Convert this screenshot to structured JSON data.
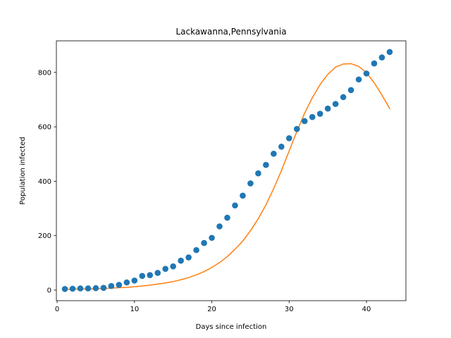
{
  "chart_data": {
    "type": "scatter",
    "title": "Lackawanna,Pennsylvania",
    "xlabel": "Days since infection",
    "ylabel": "Population infected",
    "xlim": [
      -0.1,
      45.1
    ],
    "ylim": [
      -39,
      916
    ],
    "xticks": [
      0,
      10,
      20,
      30,
      40
    ],
    "yticks": [
      0,
      200,
      400,
      600,
      800
    ],
    "grid": false,
    "series": [
      {
        "kind": "scatter",
        "color": "#1f77b4",
        "x": [
          1,
          2,
          3,
          4,
          5,
          6,
          7,
          8,
          9,
          10,
          11,
          12,
          13,
          14,
          15,
          16,
          17,
          18,
          19,
          20,
          21,
          22,
          23,
          24,
          25,
          26,
          27,
          28,
          29,
          30,
          31,
          32,
          33,
          34,
          35,
          36,
          37,
          38,
          39,
          40,
          41,
          42,
          43
        ],
        "y": [
          4,
          5,
          6,
          6,
          7,
          8,
          15,
          19,
          28,
          35,
          52,
          55,
          63,
          78,
          87,
          108,
          120,
          147,
          173,
          192,
          234,
          266,
          311,
          347,
          392,
          429,
          460,
          501,
          527,
          558,
          592,
          621,
          636,
          648,
          667,
          684,
          709,
          735,
          774,
          796,
          833,
          855,
          875
        ]
      },
      {
        "kind": "line",
        "color": "#ff7f0e",
        "x": [
          1,
          2,
          3,
          4,
          5,
          6,
          7,
          8,
          9,
          10,
          11,
          12,
          13,
          14,
          15,
          16,
          17,
          18,
          19,
          20,
          21,
          22,
          23,
          24,
          25,
          26,
          27,
          28,
          29,
          30,
          31,
          32,
          33,
          34,
          35,
          36,
          37,
          38,
          39,
          40,
          41,
          42,
          43
        ],
        "y": [
          2,
          3,
          4,
          4,
          5,
          6,
          7,
          9,
          10,
          12,
          15,
          18,
          22,
          26,
          31,
          38,
          46,
          56,
          68,
          83,
          101,
          123,
          150,
          180,
          218,
          262,
          313,
          373,
          439,
          511,
          583,
          650,
          707,
          755,
          793,
          819,
          831,
          832,
          822,
          799,
          762,
          717,
          667
        ]
      }
    ]
  }
}
